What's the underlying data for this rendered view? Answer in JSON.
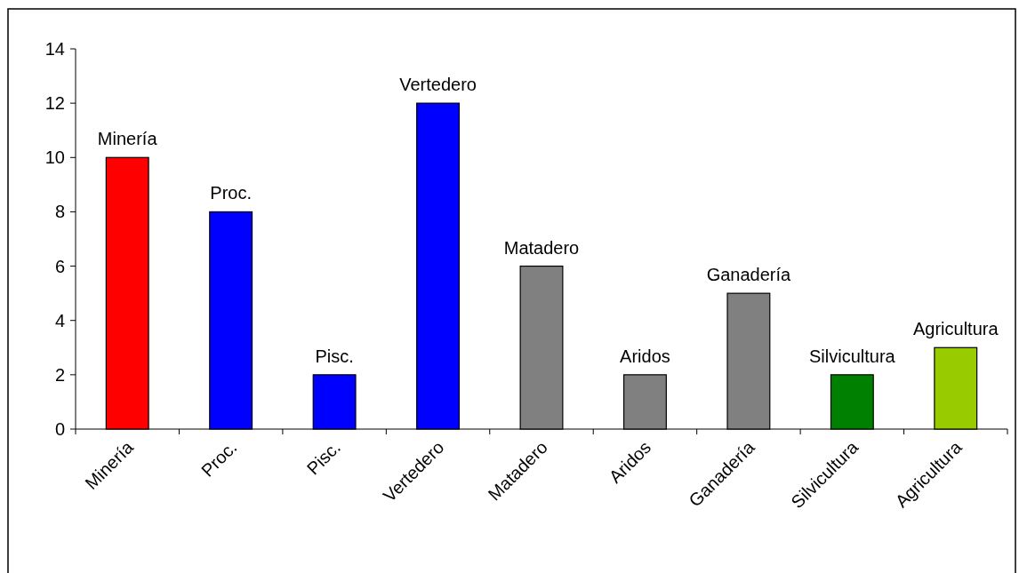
{
  "chart_data": {
    "type": "bar",
    "categories": [
      "Minería",
      "Proc.",
      "Pisc.",
      "Vertedero",
      "Matadero",
      "Aridos",
      "Ganadería",
      "Silvicultura",
      "Agricultura"
    ],
    "values": [
      10,
      8,
      2,
      12,
      6,
      2,
      5,
      2,
      3
    ],
    "colors": [
      "#ff0000",
      "#0000ff",
      "#0000ff",
      "#0000ff",
      "#808080",
      "#808080",
      "#808080",
      "#008000",
      "#99cc00"
    ],
    "ylim": [
      0,
      14
    ],
    "yticks": [
      0,
      2,
      4,
      6,
      8,
      10,
      12,
      14
    ],
    "grid": false,
    "annotations": [
      {
        "text": "Minería",
        "x": "Minería",
        "y": 10
      },
      {
        "text": "Proc.",
        "x": "Proc.",
        "y": 8
      },
      {
        "text": "Pisc.",
        "x": "Pisc.",
        "y": 2
      },
      {
        "text": "Vertedero",
        "x": "Vertedero",
        "y": 12
      },
      {
        "text": "Matadero",
        "x": "Matadero",
        "y": 6
      },
      {
        "text": "Aridos",
        "x": "Aridos",
        "y": 2
      },
      {
        "text": "Ganadería",
        "x": "Ganadería",
        "y": 5
      },
      {
        "text": "Silvicultura",
        "x": "Silvicultura",
        "y": 2
      },
      {
        "text": "Agricultura",
        "x": "Agricultura",
        "y": 3
      }
    ]
  }
}
